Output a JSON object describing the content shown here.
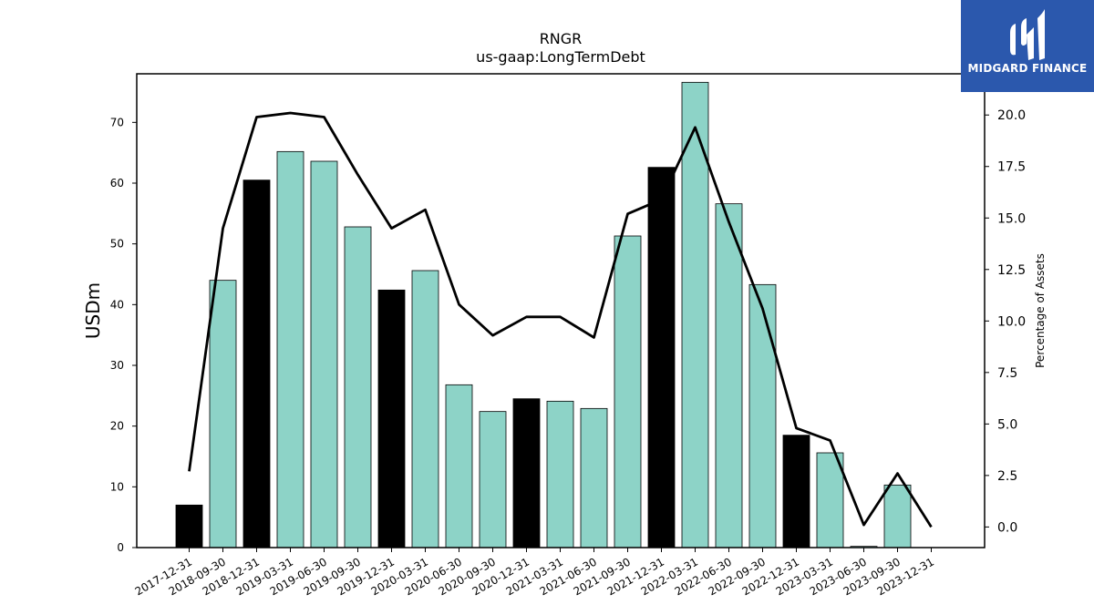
{
  "chart_data": {
    "type": "bar",
    "title": "RNGR",
    "subtitle": "us-gaap:LongTermDebt",
    "ylabel": "USDm",
    "ylabel_right": "Percentage of Assets",
    "ylim": [
      0,
      78
    ],
    "ylim_right": [
      -1,
      22
    ],
    "yticks": [
      0,
      10,
      20,
      30,
      40,
      50,
      60,
      70
    ],
    "yticks_right": [
      "0.0",
      "2.5",
      "5.0",
      "7.5",
      "10.0",
      "12.5",
      "15.0",
      "17.5",
      "20.0"
    ],
    "categories": [
      "2017-12-31",
      "2018-09-30",
      "2018-12-31",
      "2019-03-31",
      "2019-06-30",
      "2019-09-30",
      "2019-12-31",
      "2020-03-31",
      "2020-06-30",
      "2020-09-30",
      "2020-12-31",
      "2021-03-31",
      "2021-06-30",
      "2021-09-30",
      "2021-12-31",
      "2022-03-31",
      "2022-06-30",
      "2022-09-30",
      "2022-12-31",
      "2023-03-31",
      "2023-06-30",
      "2023-09-30",
      "2023-12-31"
    ],
    "series": [
      {
        "values": [
          7.0,
          44.0,
          60.5,
          65.2,
          63.6,
          52.8,
          42.4,
          45.6,
          26.8,
          22.4,
          24.5,
          24.1,
          22.9,
          51.3,
          62.6,
          76.6,
          56.6,
          43.3,
          18.5,
          15.6,
          0.2,
          10.3,
          0.0
        ],
        "year_end": [
          true,
          false,
          true,
          false,
          false,
          false,
          true,
          false,
          false,
          false,
          true,
          false,
          false,
          false,
          true,
          false,
          false,
          false,
          true,
          false,
          false,
          false,
          true
        ]
      },
      {
        "name": "Percentage of Assets",
        "axis": "right",
        "values": [
          2.7,
          14.5,
          19.9,
          20.1,
          19.9,
          17.1,
          14.5,
          15.4,
          10.8,
          9.3,
          10.2,
          10.2,
          9.2,
          15.2,
          15.9,
          19.4,
          14.8,
          10.6,
          4.8,
          4.2,
          0.1,
          2.6,
          0.0
        ]
      }
    ],
    "colors": {
      "year_end_bar": "#000000",
      "quarter_bar": "#8dd3c7",
      "line": "#000000"
    },
    "grid": false
  },
  "logo": {
    "text": "MIDGARD FINANCE",
    "background": "#2b58ad"
  }
}
